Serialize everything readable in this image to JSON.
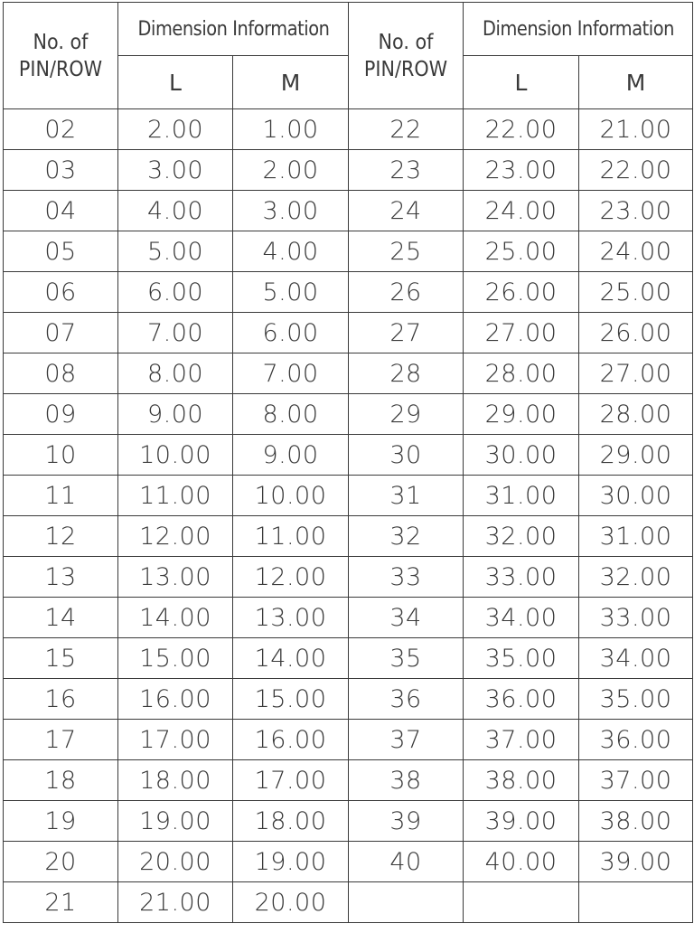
{
  "header": {
    "pin_row_line1": "No. of",
    "pin_row_line2": "PIN/ROW",
    "group": "Dimension Information",
    "col_l": "L",
    "col_m": "M"
  },
  "left_rows": [
    [
      "02",
      "2.00",
      "1.00"
    ],
    [
      "03",
      "3.00",
      "2.00"
    ],
    [
      "04",
      "4.00",
      "3.00"
    ],
    [
      "05",
      "5.00",
      "4.00"
    ],
    [
      "06",
      "6.00",
      "5.00"
    ],
    [
      "07",
      "7.00",
      "6.00"
    ],
    [
      "08",
      "8.00",
      "7.00"
    ],
    [
      "09",
      "9.00",
      "8.00"
    ],
    [
      "10",
      "10.00",
      "9.00"
    ],
    [
      "11",
      "11.00",
      "10.00"
    ],
    [
      "12",
      "12.00",
      "11.00"
    ],
    [
      "13",
      "13.00",
      "12.00"
    ],
    [
      "14",
      "14.00",
      "13.00"
    ],
    [
      "15",
      "15.00",
      "14.00"
    ],
    [
      "16",
      "16.00",
      "15.00"
    ],
    [
      "17",
      "17.00",
      "16.00"
    ],
    [
      "18",
      "18.00",
      "17.00"
    ],
    [
      "19",
      "19.00",
      "18.00"
    ],
    [
      "20",
      "20.00",
      "19.00"
    ],
    [
      "21",
      "21.00",
      "20.00"
    ]
  ],
  "right_rows": [
    [
      "22",
      "22.00",
      "21.00"
    ],
    [
      "23",
      "23.00",
      "22.00"
    ],
    [
      "24",
      "24.00",
      "23.00"
    ],
    [
      "25",
      "25.00",
      "24.00"
    ],
    [
      "26",
      "26.00",
      "25.00"
    ],
    [
      "27",
      "27.00",
      "26.00"
    ],
    [
      "28",
      "28.00",
      "27.00"
    ],
    [
      "29",
      "29.00",
      "28.00"
    ],
    [
      "30",
      "30.00",
      "29.00"
    ],
    [
      "31",
      "31.00",
      "30.00"
    ],
    [
      "32",
      "32.00",
      "31.00"
    ],
    [
      "33",
      "33.00",
      "32.00"
    ],
    [
      "34",
      "34.00",
      "33.00"
    ],
    [
      "35",
      "35.00",
      "34.00"
    ],
    [
      "36",
      "36.00",
      "35.00"
    ],
    [
      "37",
      "37.00",
      "36.00"
    ],
    [
      "38",
      "38.00",
      "37.00"
    ],
    [
      "39",
      "39.00",
      "38.00"
    ],
    [
      "40",
      "40.00",
      "39.00"
    ],
    [
      "",
      "",
      ""
    ]
  ]
}
